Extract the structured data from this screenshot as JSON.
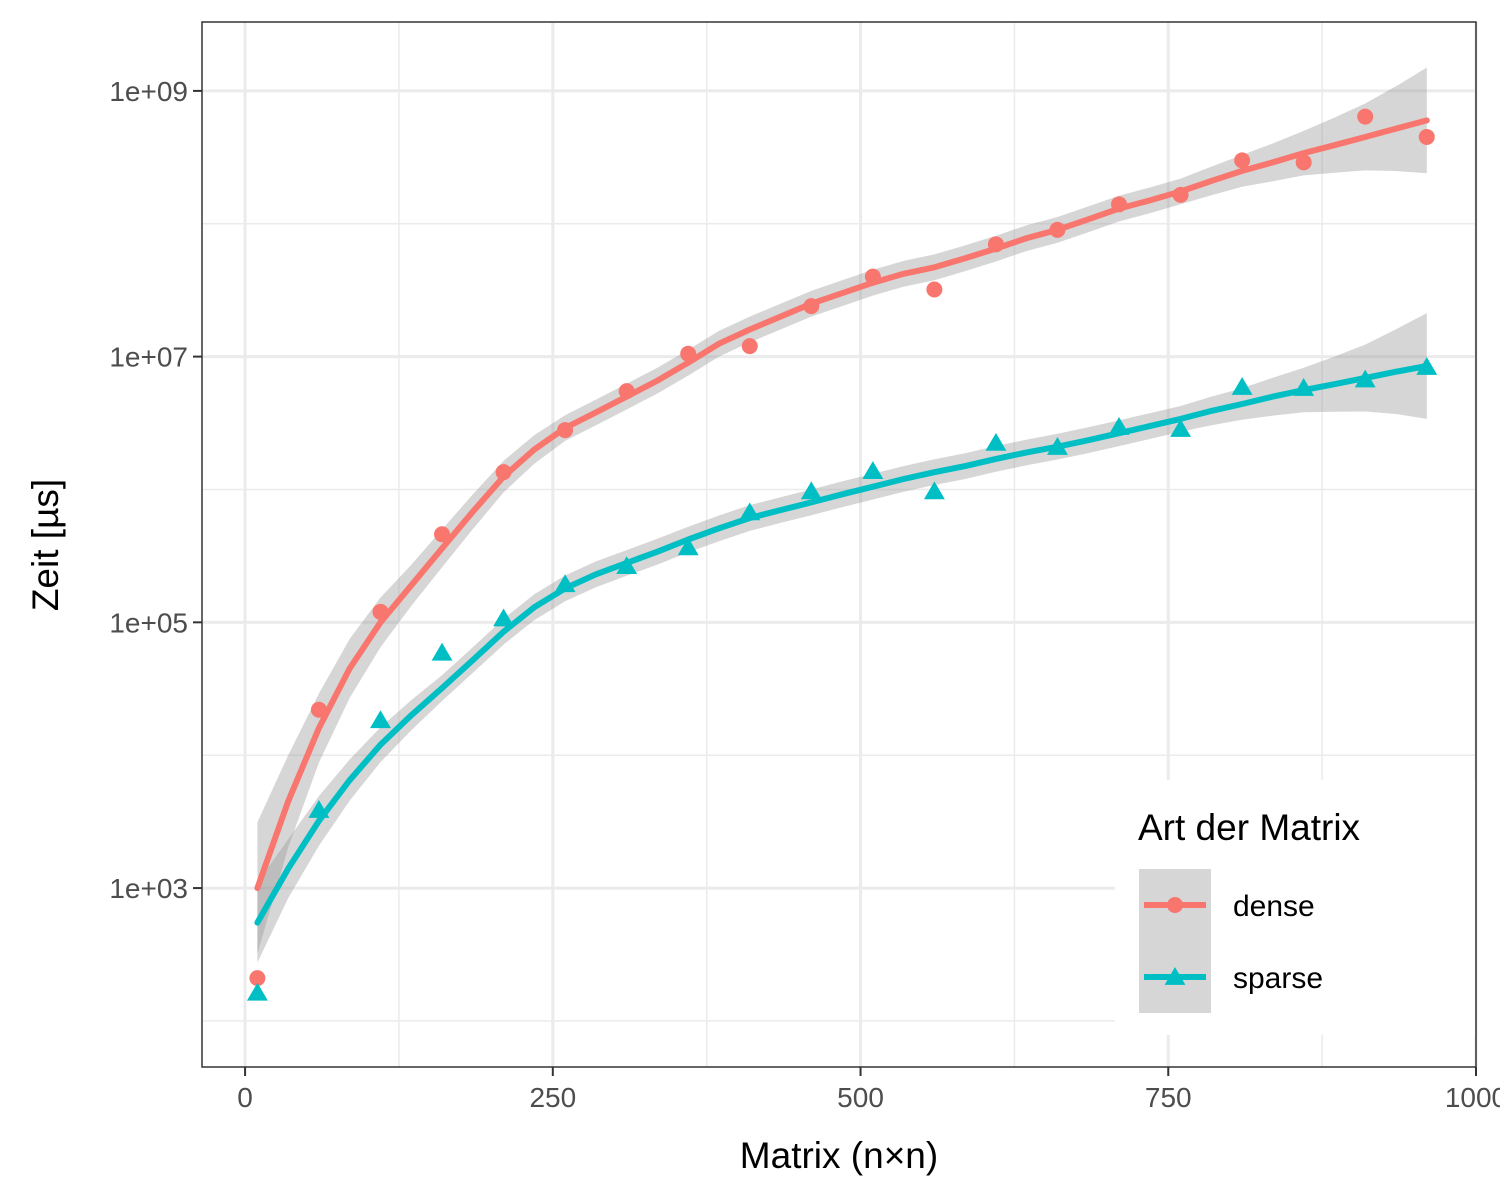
{
  "chart_data": {
    "type": "scatter",
    "xlabel": "Matrix (n×n)",
    "ylabel": "Zeit [µs]",
    "xlim": [
      -35,
      1000
    ],
    "ylim": [
      45,
      3300000000
    ],
    "y_scale": "log10",
    "x_ticks": [
      {
        "value": 0,
        "label": "0"
      },
      {
        "value": 250,
        "label": "250"
      },
      {
        "value": 500,
        "label": "500"
      },
      {
        "value": 750,
        "label": "750"
      },
      {
        "value": 1000,
        "label": "1000"
      }
    ],
    "y_ticks": [
      {
        "value": 1000,
        "label": "1e+03"
      },
      {
        "value": 100000,
        "label": "1e+05"
      },
      {
        "value": 10000000,
        "label": "1e+07"
      },
      {
        "value": 1000000000,
        "label": "1e+09"
      }
    ],
    "grid": true,
    "legend": {
      "title": "Art der Matrix",
      "position": "bottom-right"
    },
    "series": [
      {
        "name": "dense",
        "color": "#F8766D",
        "marker": "circle",
        "x": [
          10,
          60,
          110,
          160,
          210,
          260,
          310,
          360,
          410,
          460,
          510,
          560,
          610,
          660,
          710,
          760,
          810,
          860,
          910,
          960
        ],
        "y": [
          210,
          22000,
          120000,
          460000,
          1350000,
          2800000,
          5500000,
          10500000,
          12000000,
          24000000,
          40000000,
          32000000,
          70000000,
          90000000,
          140000000,
          165000000,
          300000000,
          290000000,
          640000000,
          450000000
        ],
        "smooth": [
          [
            10,
            1000
          ],
          [
            35,
            4500
          ],
          [
            60,
            16000
          ],
          [
            85,
            45000
          ],
          [
            110,
            100000
          ],
          [
            135,
            190000
          ],
          [
            160,
            360000
          ],
          [
            185,
            680000
          ],
          [
            210,
            1250000
          ],
          [
            235,
            2000000
          ],
          [
            260,
            2900000
          ],
          [
            285,
            3800000
          ],
          [
            310,
            5000000
          ],
          [
            335,
            6600000
          ],
          [
            360,
            9000000
          ],
          [
            385,
            12500000
          ],
          [
            410,
            16000000
          ],
          [
            435,
            20000000
          ],
          [
            460,
            25000000
          ],
          [
            485,
            30000000
          ],
          [
            510,
            36000000
          ],
          [
            535,
            42000000
          ],
          [
            560,
            47000000
          ],
          [
            585,
            55000000
          ],
          [
            610,
            65000000
          ],
          [
            635,
            78000000
          ],
          [
            660,
            90000000
          ],
          [
            685,
            108000000
          ],
          [
            710,
            130000000
          ],
          [
            735,
            150000000
          ],
          [
            760,
            175000000
          ],
          [
            785,
            210000000
          ],
          [
            810,
            250000000
          ],
          [
            835,
            290000000
          ],
          [
            860,
            340000000
          ],
          [
            885,
            390000000
          ],
          [
            910,
            450000000
          ],
          [
            935,
            520000000
          ],
          [
            960,
            600000000
          ]
        ],
        "band_lower_ratio": [
          0.32,
          0.45,
          0.55,
          0.6,
          0.65,
          0.7,
          0.72,
          0.74,
          0.76,
          0.78,
          0.8,
          0.8,
          0.8,
          0.8,
          0.8,
          0.8,
          0.8,
          0.8,
          0.8,
          0.8,
          0.8,
          0.8,
          0.8,
          0.8,
          0.8,
          0.8,
          0.8,
          0.8,
          0.8,
          0.8,
          0.8,
          0.78,
          0.76,
          0.72,
          0.68,
          0.62,
          0.56,
          0.48,
          0.4
        ]
      },
      {
        "name": "sparse",
        "color": "#00BFC4",
        "marker": "triangle",
        "x": [
          10,
          60,
          110,
          160,
          210,
          260,
          310,
          360,
          410,
          460,
          510,
          560,
          610,
          660,
          710,
          760,
          810,
          860,
          910,
          960
        ],
        "y": [
          160,
          3800,
          18000,
          58000,
          105000,
          190000,
          260000,
          360000,
          660000,
          950000,
          1350000,
          950000,
          2200000,
          2050000,
          2900000,
          2800000,
          5800000,
          5700000,
          6600000,
          8200000
        ],
        "smooth": [
          [
            10,
            550
          ],
          [
            35,
            1400
          ],
          [
            60,
            3200
          ],
          [
            85,
            6500
          ],
          [
            110,
            12000
          ],
          [
            135,
            20000
          ],
          [
            160,
            32000
          ],
          [
            185,
            52000
          ],
          [
            210,
            85000
          ],
          [
            235,
            130000
          ],
          [
            260,
            180000
          ],
          [
            285,
            230000
          ],
          [
            310,
            280000
          ],
          [
            335,
            340000
          ],
          [
            360,
            420000
          ],
          [
            385,
            510000
          ],
          [
            410,
            610000
          ],
          [
            435,
            700000
          ],
          [
            460,
            800000
          ],
          [
            485,
            920000
          ],
          [
            510,
            1050000
          ],
          [
            535,
            1200000
          ],
          [
            560,
            1350000
          ],
          [
            585,
            1500000
          ],
          [
            610,
            1700000
          ],
          [
            635,
            1900000
          ],
          [
            660,
            2100000
          ],
          [
            685,
            2350000
          ],
          [
            710,
            2650000
          ],
          [
            735,
            3000000
          ],
          [
            760,
            3400000
          ],
          [
            785,
            3900000
          ],
          [
            810,
            4400000
          ],
          [
            835,
            5000000
          ],
          [
            860,
            5600000
          ],
          [
            885,
            6200000
          ],
          [
            910,
            6900000
          ],
          [
            935,
            7700000
          ],
          [
            960,
            8500000
          ]
        ],
        "band_lower_ratio": [
          0.5,
          0.6,
          0.65,
          0.7,
          0.74,
          0.77,
          0.8,
          0.8,
          0.8,
          0.8,
          0.8,
          0.8,
          0.8,
          0.8,
          0.8,
          0.8,
          0.8,
          0.8,
          0.8,
          0.8,
          0.8,
          0.8,
          0.8,
          0.8,
          0.8,
          0.8,
          0.8,
          0.8,
          0.8,
          0.8,
          0.8,
          0.78,
          0.76,
          0.72,
          0.68,
          0.62,
          0.56,
          0.48,
          0.4
        ]
      }
    ]
  }
}
